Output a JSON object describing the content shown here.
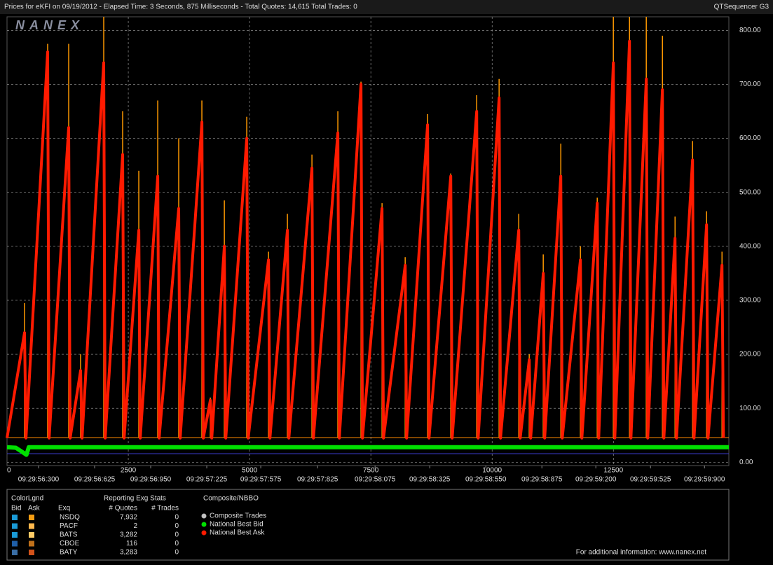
{
  "header": {
    "title": "Prices for  eKFI  on  09/19/2012  -  Elapsed Time: 3 Seconds, 875 Milliseconds  -  Total Quotes: 14,615  Total Trades: 0",
    "product": "QTSequencer G3",
    "logo": "NANEX"
  },
  "chart_data": {
    "type": "line",
    "xlim": [
      0,
      14880
    ],
    "ylim": [
      -6,
      825
    ],
    "xticks": [
      0,
      2500,
      5000,
      7500,
      10000,
      12500
    ],
    "time_ticks": [
      {
        "value": 650,
        "label": "09:29:56:300"
      },
      {
        "value": 1806,
        "label": "09:29:56:625"
      },
      {
        "value": 2962,
        "label": "09:29:56:950"
      },
      {
        "value": 4118,
        "label": "09:29:57:225"
      },
      {
        "value": 5231,
        "label": "09:29:57:575"
      },
      {
        "value": 6402,
        "label": "09:29:57:825"
      },
      {
        "value": 7587,
        "label": "09:29:58:075"
      },
      {
        "value": 8714,
        "label": "09:29:58:325"
      },
      {
        "value": 9870,
        "label": "09:29:58:550"
      },
      {
        "value": 11026,
        "label": "09:29:58:875"
      },
      {
        "value": 12138,
        "label": "09:29:59:200"
      },
      {
        "value": 13265,
        "label": "09:29:59:525"
      },
      {
        "value": 14378,
        "label": "09:29:59:900"
      }
    ],
    "yticks": [
      {
        "value": 0,
        "label": "0.00"
      },
      {
        "value": 100,
        "label": "100.00"
      },
      {
        "value": 200,
        "label": "200.00"
      },
      {
        "value": 300,
        "label": "300.00"
      },
      {
        "value": 400,
        "label": "400.00"
      },
      {
        "value": 500,
        "label": "500.00"
      },
      {
        "value": 600,
        "label": "600.00"
      },
      {
        "value": 700,
        "label": "700.00"
      },
      {
        "value": 800,
        "label": "800.00"
      }
    ],
    "grid": true,
    "series": [
      {
        "name": "Composite Trades",
        "color": "#c0c0c0",
        "x": [],
        "values": []
      },
      {
        "name": "National Best Bid",
        "color": "#00e000",
        "x": [
          0,
          180,
          300,
          400,
          450,
          14880
        ],
        "values": [
          28,
          27,
          20,
          14,
          28,
          28
        ]
      },
      {
        "name": "National Best Ask",
        "color": "#ff1a00",
        "x": [
          0,
          361,
          391,
          838,
          868,
          1272,
          1302,
          1517,
          1547,
          1994,
          2024,
          2384,
          2414,
          2717,
          2747,
          3107,
          3137,
          3540,
          3570,
          4017,
          4047,
          4191,
          4221,
          4480,
          4510,
          4942,
          4972,
          5390,
          5420,
          5780,
          5810,
          6286,
          6316,
          6820,
          6850,
          7297,
          7327,
          7731,
          7761,
          8208,
          8238,
          8670,
          8700,
          9147,
          9177,
          9682,
          9712,
          10144,
          10174,
          10549,
          10579,
          10765,
          10795,
          11054,
          11084,
          11416,
          11446,
          11820,
          11850,
          12167,
          12197,
          12499,
          12529,
          12832,
          12862,
          13178,
          13208,
          13511,
          13541,
          13771,
          13801,
          14132,
          14162,
          14421,
          14451,
          14739,
          14769
        ],
        "values": [
          45,
          240,
          45,
          760,
          45,
          620,
          45,
          170,
          45,
          740,
          45,
          570,
          45,
          430,
          45,
          530,
          45,
          470,
          45,
          630,
          45,
          115,
          45,
          400,
          45,
          600,
          45,
          375,
          45,
          430,
          45,
          545,
          45,
          610,
          45,
          700,
          45,
          470,
          45,
          365,
          45,
          625,
          45,
          530,
          45,
          650,
          45,
          675,
          45,
          430,
          45,
          190,
          45,
          350,
          45,
          530,
          45,
          375,
          45,
          480,
          45,
          740,
          45,
          780,
          45,
          710,
          45,
          690,
          45,
          415,
          45,
          560,
          45,
          440,
          45,
          365,
          45
        ]
      }
    ],
    "spikes": {
      "color": "#ff9900",
      "base": 45,
      "x": [
        361,
        838,
        1272,
        1517,
        1994,
        2384,
        2717,
        3107,
        3540,
        4017,
        4191,
        4480,
        4942,
        5390,
        5780,
        6286,
        6820,
        7297,
        7731,
        8208,
        8670,
        9147,
        9682,
        10144,
        10549,
        10765,
        11054,
        11416,
        11820,
        12167,
        12499,
        12832,
        13178,
        13511,
        13771,
        14132,
        14421,
        14739
      ],
      "values": [
        295,
        775,
        775,
        200,
        825,
        650,
        540,
        670,
        600,
        670,
        120,
        485,
        640,
        390,
        460,
        570,
        650,
        705,
        480,
        380,
        645,
        535,
        680,
        710,
        460,
        200,
        385,
        590,
        400,
        490,
        825,
        825,
        825,
        790,
        455,
        595,
        465,
        390
      ]
    }
  },
  "panel": {
    "color_legend": "ColorLgnd",
    "bid": "Bid",
    "ask": "Ask",
    "exq": "Exq",
    "stats_title": "Reporting Exg Stats",
    "quotes_head": "# Quotes",
    "trades_head": "# Trades",
    "composite_title": "Composite/NBBO",
    "rows": [
      [
        "NSDQ",
        "7,932",
        "0"
      ],
      [
        "PACF",
        "2",
        "0"
      ],
      [
        "BATS",
        "3,282",
        "0"
      ],
      [
        "CBOE",
        "116",
        "0"
      ],
      [
        "BATY",
        "3,283",
        "0"
      ]
    ],
    "footer": "For additional information: www.nanex.net"
  }
}
